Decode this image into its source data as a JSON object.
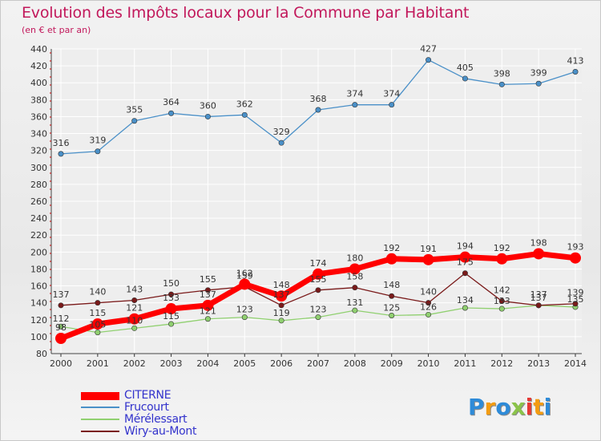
{
  "chart_data": {
    "type": "line",
    "title": "Evolution des Impôts locaux pour la Commune par Habitant",
    "subtitle": "(en € et par an)",
    "xlabel": "",
    "ylabel": "",
    "ylim": [
      80,
      440
    ],
    "yticks": [
      80,
      100,
      120,
      140,
      160,
      180,
      200,
      220,
      240,
      260,
      280,
      300,
      320,
      340,
      360,
      380,
      400,
      420,
      440
    ],
    "categories": [
      "2000",
      "2001",
      "2002",
      "2003",
      "2004",
      "2005",
      "2006",
      "2007",
      "2008",
      "2009",
      "2010",
      "2011",
      "2012",
      "2013",
      "2014"
    ],
    "grid": true,
    "legend_position": "bottom-left",
    "series": [
      {
        "name": "CITERNE",
        "color": "#ff0000",
        "values": [
          98,
          115,
          121,
          133,
          137,
          162,
          148,
          174,
          180,
          192,
          191,
          194,
          192,
          198,
          193
        ]
      },
      {
        "name": "Frucourt",
        "color": "#4a90c8",
        "values": [
          316,
          319,
          355,
          364,
          360,
          362,
          329,
          368,
          374,
          374,
          427,
          405,
          398,
          399,
          413
        ]
      },
      {
        "name": "Mérélessart",
        "color": "#90d070",
        "values": [
          112,
          105,
          110,
          115,
          121,
          123,
          119,
          123,
          131,
          125,
          126,
          134,
          133,
          137,
          135
        ]
      },
      {
        "name": "Wiry-au-Mont",
        "color": "#7a1a1a",
        "values": [
          137,
          140,
          143,
          150,
          155,
          159,
          137,
          155,
          158,
          148,
          140,
          175,
          142,
          137,
          139
        ]
      }
    ]
  }
}
